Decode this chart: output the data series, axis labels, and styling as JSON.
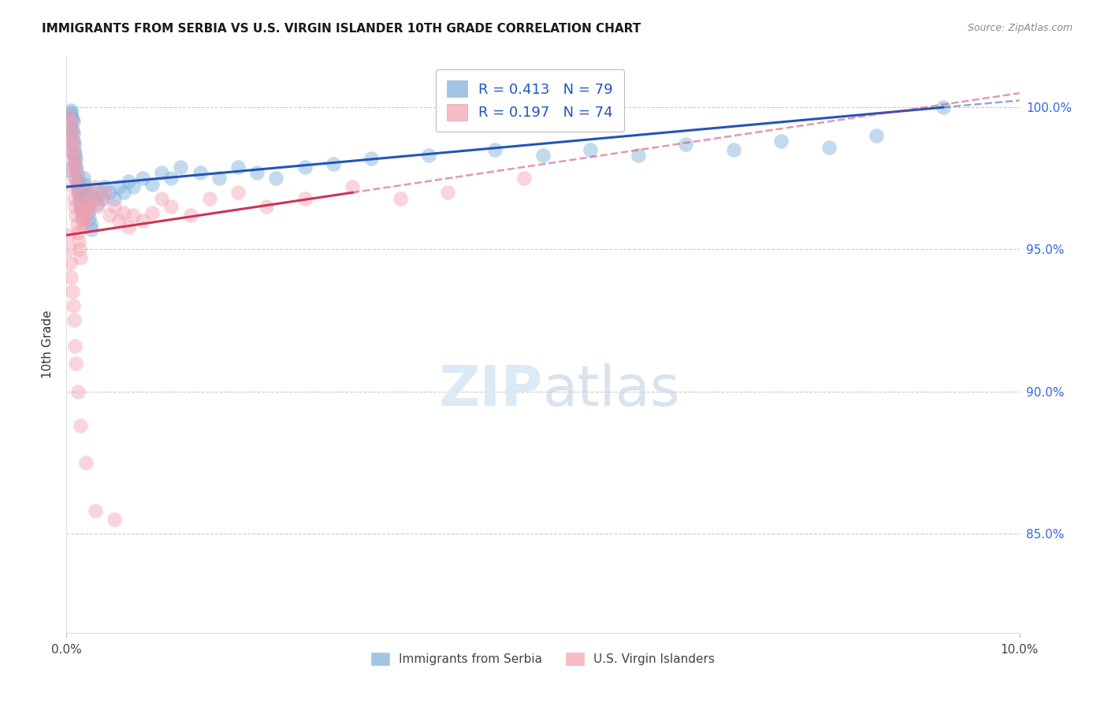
{
  "title": "IMMIGRANTS FROM SERBIA VS U.S. VIRGIN ISLANDER 10TH GRADE CORRELATION CHART",
  "source": "Source: ZipAtlas.com",
  "ylabel": "10th Grade",
  "y_ticks": [
    0.85,
    0.9,
    0.95,
    1.0
  ],
  "y_tick_labels": [
    "85.0%",
    "90.0%",
    "95.0%",
    "100.0%"
  ],
  "x_range": [
    0.0,
    10.0
  ],
  "y_range": [
    0.815,
    1.018
  ],
  "legend_label_blue": "Immigrants from Serbia",
  "legend_label_pink": "U.S. Virgin Islanders",
  "blue_color": "#7AADDB",
  "pink_color": "#F4A0B0",
  "trend_blue": "#2255BB",
  "trend_pink": "#CC3355",
  "blue_R": 0.413,
  "blue_N": 79,
  "pink_R": 0.197,
  "pink_N": 74,
  "blue_x": [
    0.02,
    0.03,
    0.04,
    0.04,
    0.05,
    0.05,
    0.05,
    0.06,
    0.06,
    0.07,
    0.07,
    0.07,
    0.08,
    0.08,
    0.09,
    0.09,
    0.1,
    0.1,
    0.1,
    0.11,
    0.11,
    0.12,
    0.12,
    0.13,
    0.13,
    0.14,
    0.14,
    0.15,
    0.15,
    0.16,
    0.16,
    0.17,
    0.17,
    0.18,
    0.19,
    0.2,
    0.2,
    0.21,
    0.22,
    0.23,
    0.24,
    0.25,
    0.26,
    0.28,
    0.3,
    0.32,
    0.35,
    0.38,
    0.4,
    0.45,
    0.5,
    0.55,
    0.6,
    0.65,
    0.7,
    0.8,
    0.9,
    1.0,
    1.1,
    1.2,
    1.4,
    1.6,
    1.8,
    2.0,
    2.2,
    2.5,
    2.8,
    3.2,
    3.8,
    4.5,
    5.0,
    5.5,
    6.0,
    6.5,
    7.0,
    7.5,
    8.0,
    8.5,
    9.2
  ],
  "blue_y": [
    0.978,
    0.985,
    0.99,
    0.993,
    0.997,
    0.998,
    0.999,
    0.996,
    0.992,
    0.995,
    0.988,
    0.991,
    0.983,
    0.987,
    0.98,
    0.984,
    0.975,
    0.979,
    0.982,
    0.973,
    0.977,
    0.971,
    0.974,
    0.969,
    0.972,
    0.967,
    0.97,
    0.965,
    0.968,
    0.963,
    0.966,
    0.961,
    0.964,
    0.975,
    0.973,
    0.971,
    0.969,
    0.967,
    0.965,
    0.963,
    0.961,
    0.959,
    0.957,
    0.97,
    0.968,
    0.966,
    0.97,
    0.968,
    0.972,
    0.97,
    0.968,
    0.972,
    0.97,
    0.974,
    0.972,
    0.975,
    0.973,
    0.977,
    0.975,
    0.979,
    0.977,
    0.975,
    0.979,
    0.977,
    0.975,
    0.979,
    0.98,
    0.982,
    0.983,
    0.985,
    0.983,
    0.985,
    0.983,
    0.987,
    0.985,
    0.988,
    0.986,
    0.99,
    1.0
  ],
  "pink_x": [
    0.02,
    0.03,
    0.04,
    0.04,
    0.05,
    0.05,
    0.06,
    0.06,
    0.07,
    0.07,
    0.07,
    0.08,
    0.08,
    0.09,
    0.09,
    0.1,
    0.1,
    0.11,
    0.11,
    0.12,
    0.12,
    0.13,
    0.13,
    0.14,
    0.14,
    0.15,
    0.15,
    0.16,
    0.17,
    0.18,
    0.19,
    0.2,
    0.21,
    0.22,
    0.23,
    0.25,
    0.27,
    0.3,
    0.33,
    0.37,
    0.4,
    0.45,
    0.5,
    0.55,
    0.6,
    0.65,
    0.7,
    0.8,
    0.9,
    1.0,
    1.1,
    1.3,
    1.5,
    1.8,
    2.1,
    2.5,
    3.0,
    3.5,
    4.0,
    4.8,
    0.02,
    0.03,
    0.04,
    0.05,
    0.06,
    0.07,
    0.08,
    0.09,
    0.1,
    0.12,
    0.15,
    0.2,
    0.3,
    0.5
  ],
  "pink_y": [
    0.997,
    0.994,
    0.99,
    0.986,
    0.982,
    0.995,
    0.979,
    0.991,
    0.976,
    0.988,
    0.972,
    0.985,
    0.968,
    0.982,
    0.965,
    0.979,
    0.962,
    0.976,
    0.959,
    0.973,
    0.956,
    0.97,
    0.953,
    0.967,
    0.95,
    0.964,
    0.947,
    0.961,
    0.958,
    0.963,
    0.96,
    0.965,
    0.962,
    0.967,
    0.97,
    0.965,
    0.968,
    0.972,
    0.965,
    0.968,
    0.97,
    0.962,
    0.965,
    0.96,
    0.963,
    0.958,
    0.962,
    0.96,
    0.963,
    0.968,
    0.965,
    0.962,
    0.968,
    0.97,
    0.965,
    0.968,
    0.972,
    0.968,
    0.97,
    0.975,
    0.955,
    0.95,
    0.945,
    0.94,
    0.935,
    0.93,
    0.925,
    0.916,
    0.91,
    0.9,
    0.888,
    0.875,
    0.858,
    0.855
  ]
}
